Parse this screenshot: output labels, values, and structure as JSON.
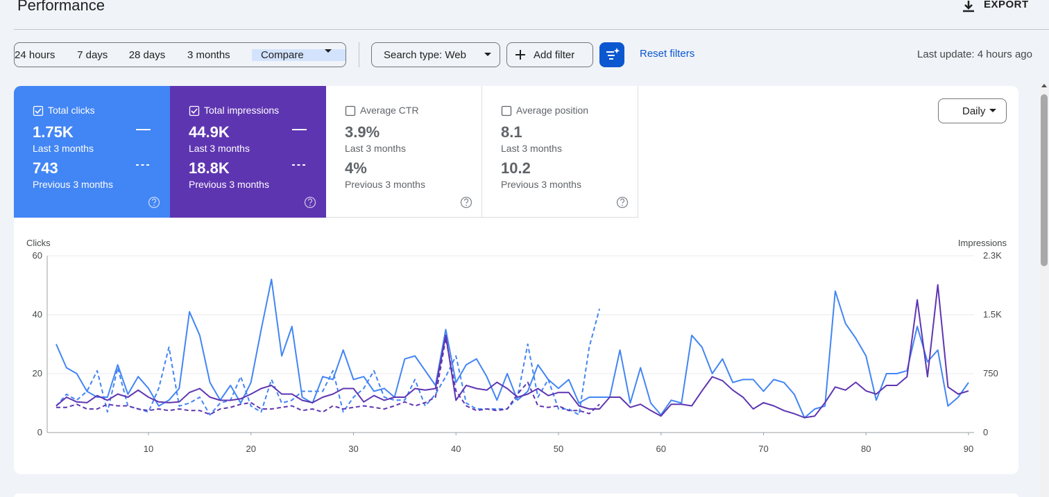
{
  "header": {
    "title": "Performance",
    "export": "EXPORT"
  },
  "toolbar": {
    "ranges": [
      "24 hours",
      "7 days",
      "28 days",
      "3 months",
      "Compare"
    ],
    "search_type": "Search type: Web",
    "add_filter": "Add filter",
    "reset": "Reset filters",
    "last_update": "Last update: 4 hours ago"
  },
  "metrics": [
    {
      "label": "Total clicks",
      "value": "1.75K",
      "period": "Last 3 months",
      "previous_value": "743",
      "previous_period": "Previous 3 months",
      "selected": true,
      "color": "#4285f4"
    },
    {
      "label": "Total impressions",
      "value": "44.9K",
      "period": "Last 3 months",
      "previous_value": "18.8K",
      "previous_period": "Previous 3 months",
      "selected": true,
      "color": "#5e35b1"
    },
    {
      "label": "Average CTR",
      "value": "3.9%",
      "period": "Last 3 months",
      "previous_value": "4%",
      "previous_period": "Previous 3 months",
      "selected": false,
      "color": "#ffffff"
    },
    {
      "label": "Average position",
      "value": "8.1",
      "period": "Last 3 months",
      "previous_value": "10.2",
      "previous_period": "Previous 3 months",
      "selected": false,
      "color": "#ffffff"
    }
  ],
  "granularity": "Daily",
  "chart_data": {
    "type": "line",
    "y_label": "Clicks",
    "y2_label": "Impressions",
    "grid": true,
    "x": [
      1,
      2,
      3,
      4,
      5,
      6,
      7,
      8,
      9,
      10,
      11,
      12,
      13,
      14,
      15,
      16,
      17,
      18,
      19,
      20,
      21,
      22,
      23,
      24,
      25,
      26,
      27,
      28,
      29,
      30,
      31,
      32,
      33,
      34,
      35,
      36,
      37,
      38,
      39,
      40,
      41,
      42,
      43,
      44,
      45,
      46,
      47,
      48,
      49,
      50,
      51,
      52,
      53,
      54,
      55,
      56,
      57,
      58,
      59,
      60,
      61,
      62,
      63,
      64,
      65,
      66,
      67,
      68,
      69,
      70,
      71,
      72,
      73,
      74,
      75,
      76,
      77,
      78,
      79,
      80,
      81,
      82,
      83,
      84,
      85,
      86,
      87,
      88,
      89,
      90
    ],
    "xlim": [
      1,
      90
    ],
    "xticks": [
      10,
      20,
      30,
      40,
      50,
      60,
      70,
      80,
      90
    ],
    "ylim": [
      0,
      60
    ],
    "yticks": [
      0,
      20,
      40,
      60
    ],
    "y2lim": [
      0,
      2250
    ],
    "y2ticks": [
      0,
      750,
      {
        "value": 1500,
        "label": "1.5K"
      },
      {
        "value": 2250,
        "label": "2.3K"
      }
    ],
    "series": [
      {
        "color": "#4285f4",
        "style": "solid",
        "values": [
          30,
          22,
          20,
          14,
          12,
          12,
          23,
          13,
          19,
          15,
          9,
          11,
          15,
          41,
          33,
          17,
          11,
          16,
          10,
          17,
          35,
          52,
          26,
          36,
          12,
          10,
          19,
          18,
          28,
          18,
          19,
          14,
          15,
          12,
          25,
          26,
          21,
          16,
          35,
          17,
          23,
          25,
          19,
          11,
          20,
          11,
          14,
          23,
          18,
          15,
          18,
          10,
          12,
          12,
          12,
          28,
          10,
          22,
          10,
          6,
          11,
          10,
          33,
          29,
          20,
          25,
          17,
          18,
          18,
          14,
          18,
          17,
          13,
          5,
          8,
          9,
          48,
          37,
          32,
          26,
          11,
          20,
          20,
          21,
          36,
          24,
          28,
          9,
          12,
          17
        ]
      },
      {
        "color": "#5e35b1",
        "style": "solid",
        "axis": "y2",
        "values": [
          340,
          450,
          390,
          380,
          470,
          410,
          490,
          450,
          540,
          450,
          390,
          380,
          390,
          510,
          560,
          450,
          410,
          410,
          430,
          490,
          560,
          600,
          490,
          490,
          410,
          380,
          450,
          490,
          560,
          560,
          390,
          470,
          410,
          450,
          450,
          560,
          540,
          560,
          1240,
          410,
          600,
          560,
          540,
          640,
          560,
          450,
          490,
          560,
          470,
          510,
          510,
          340,
          300,
          300,
          450,
          450,
          320,
          360,
          280,
          210,
          360,
          360,
          340,
          530,
          710,
          660,
          540,
          450,
          300,
          380,
          340,
          280,
          240,
          190,
          210,
          380,
          580,
          540,
          640,
          530,
          490,
          600,
          600,
          710,
          1690,
          710,
          1880,
          580,
          490,
          530
        ]
      },
      {
        "color": "#4285f4",
        "style": "dashed",
        "values": [
          9,
          13,
          11,
          14,
          21,
          7,
          22,
          9,
          8,
          7,
          15,
          29,
          9,
          10,
          12,
          6,
          10,
          11,
          19,
          9,
          7,
          18,
          10,
          11,
          14,
          14,
          14,
          21,
          7,
          12,
          15,
          21,
          12,
          11,
          11,
          18,
          9,
          13,
          19,
          26,
          10,
          8,
          8,
          8,
          8,
          12,
          30,
          12,
          18,
          8,
          8,
          6,
          29,
          42,
          null,
          null,
          null,
          null,
          null,
          null,
          null,
          null,
          null,
          null,
          null,
          null,
          null,
          null,
          null,
          null,
          null,
          null,
          null,
          null,
          null,
          null,
          null,
          null,
          null,
          null,
          null,
          null,
          null,
          null,
          null,
          null,
          null,
          null,
          null,
          null
        ]
      },
      {
        "color": "#5e35b1",
        "style": "dashed",
        "axis": "y2",
        "values": [
          320,
          320,
          360,
          300,
          300,
          360,
          340,
          340,
          300,
          280,
          300,
          280,
          300,
          280,
          280,
          230,
          300,
          320,
          360,
          380,
          300,
          300,
          320,
          340,
          280,
          300,
          260,
          340,
          300,
          320,
          340,
          320,
          300,
          340,
          390,
          340,
          380,
          450,
          1200,
          530,
          340,
          280,
          300,
          280,
          300,
          490,
          640,
          340,
          320,
          340,
          280,
          280,
          240,
          360,
          null,
          null,
          null,
          null,
          null,
          null,
          null,
          null,
          null,
          null,
          null,
          null,
          null,
          null,
          null,
          null,
          null,
          null,
          null,
          null,
          null,
          null,
          null,
          null,
          null,
          null,
          null,
          null,
          null,
          null,
          null,
          null,
          null,
          null,
          null,
          null
        ]
      }
    ]
  }
}
